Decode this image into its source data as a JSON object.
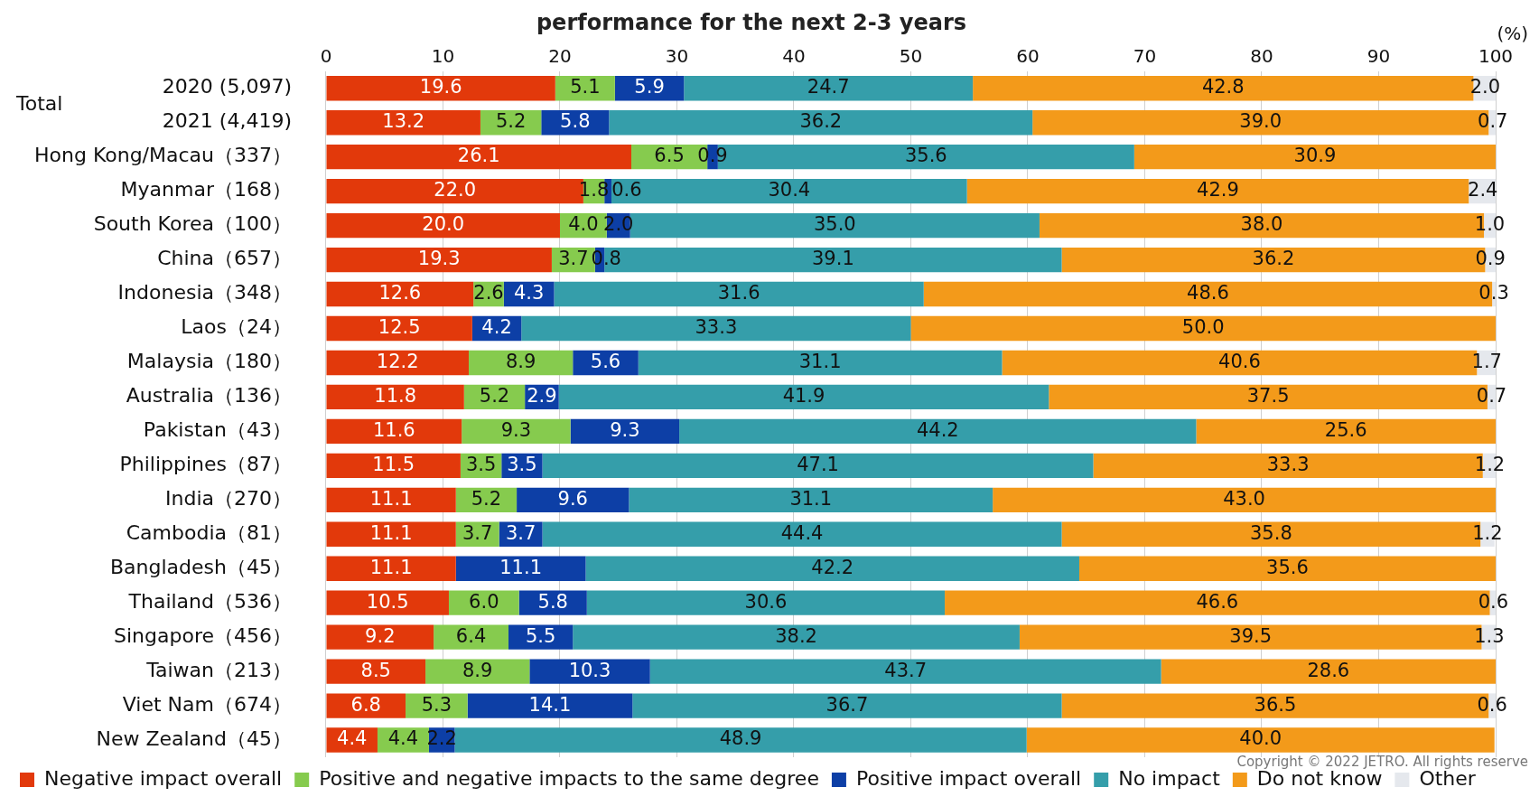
{
  "chart_data": {
    "type": "bar",
    "orientation": "horizontal",
    "stacked": true,
    "title": "performance for the next 2-3 years",
    "xlabel": "(%)",
    "categories": [
      "2020 (5,097)",
      "2021 (4,419)",
      "Hong Kong/Macau（337）",
      "Myanmar（168）",
      "South Korea（100）",
      "China（657）",
      "Indonesia（348）",
      "Laos（24）",
      "Malaysia（180）",
      "Australia（136）",
      "Pakistan（43）",
      "Philippines（87）",
      "India（270）",
      "Cambodia（81）",
      "Bangladesh（45）",
      "Thailand（536）",
      "Singapore（456）",
      "Taiwan（213）",
      "Viet Nam（674）",
      "New Zealand（45）"
    ],
    "series": [
      {
        "name": "Negative impact overall",
        "color": "#e2390b",
        "values": [
          19.6,
          13.2,
          26.1,
          22.0,
          20.0,
          19.3,
          12.6,
          12.5,
          12.2,
          11.8,
          11.6,
          11.5,
          11.1,
          11.1,
          11.1,
          10.5,
          9.2,
          8.5,
          6.8,
          4.4
        ],
        "value_labels": [
          "19.6",
          "13.2",
          "26.1",
          "22.0",
          "20.0",
          "19.3",
          "12.6",
          "12.5",
          "12.2",
          "11.8",
          "11.6",
          "11.5",
          "11.1",
          "11.1",
          "11.1",
          "10.5",
          "9.2",
          "8.5",
          "6.8",
          "4.4"
        ]
      },
      {
        "name": "Positive and negative impacts to the same degree",
        "color": "#86cb4e",
        "values": [
          5.1,
          5.2,
          6.5,
          1.8,
          4.0,
          3.7,
          2.6,
          0,
          8.9,
          5.2,
          9.3,
          3.5,
          5.2,
          3.7,
          0,
          6.0,
          6.4,
          8.9,
          5.3,
          4.4
        ],
        "value_labels": [
          "5.1",
          "5.2",
          "6.5",
          "1.8",
          "4.0",
          "3.7",
          "2.6",
          null,
          "8.9",
          "5.2",
          "9.3",
          "3.5",
          "5.2",
          "3.7",
          null,
          "6.0",
          "6.4",
          "8.9",
          "5.3",
          "4.4"
        ]
      },
      {
        "name": "Positive impact overall",
        "color": "#0d3fa6",
        "values": [
          5.9,
          5.8,
          0.9,
          0.6,
          2.0,
          0.8,
          4.3,
          4.2,
          5.6,
          2.9,
          9.3,
          3.5,
          9.6,
          3.7,
          11.1,
          5.8,
          5.5,
          10.3,
          14.1,
          2.2
        ],
        "value_labels": [
          "5.9",
          "5.8",
          "0.9",
          "0.6",
          "2.0",
          "0.8",
          "4.3",
          "4.2",
          "5.6",
          "2.9",
          "9.3",
          "3.5",
          "9.6",
          "3.7",
          "11.1",
          "5.8",
          "5.5",
          "10.3",
          "14.1",
          "2.2"
        ]
      },
      {
        "name": "No impact",
        "color": "#359eaa",
        "values": [
          24.7,
          36.2,
          35.6,
          30.4,
          35.0,
          39.1,
          31.6,
          33.3,
          31.1,
          41.9,
          44.2,
          47.1,
          31.1,
          44.4,
          42.2,
          30.6,
          38.2,
          43.7,
          36.7,
          48.9
        ],
        "value_labels": [
          "24.7",
          "36.2",
          "35.6",
          "30.4",
          "35.0",
          "39.1",
          "31.6",
          "33.3",
          "31.1",
          "41.9",
          "44.2",
          "47.1",
          "31.1",
          "44.4",
          "42.2",
          "30.6",
          "38.2",
          "43.7",
          "36.7",
          "48.9"
        ]
      },
      {
        "name": "Do not know",
        "color": "#f39a1a",
        "values": [
          42.8,
          39.0,
          30.9,
          42.9,
          38.0,
          36.2,
          48.6,
          50.0,
          40.6,
          37.5,
          25.6,
          33.3,
          43.0,
          35.8,
          35.6,
          46.6,
          39.5,
          28.6,
          36.5,
          40.0
        ],
        "value_labels": [
          "42.8",
          "39.0",
          "30.9",
          "42.9",
          "38.0",
          "36.2",
          "48.6",
          "50.0",
          "40.6",
          "37.5",
          "25.6",
          "33.3",
          "43.0",
          "35.8",
          "35.6",
          "46.6",
          "39.5",
          "28.6",
          "36.5",
          "40.0"
        ]
      },
      {
        "name": "Other",
        "color": "#e5e8ed",
        "values": [
          2.0,
          0.7,
          0,
          2.4,
          1.0,
          0.9,
          0.3,
          0,
          1.7,
          0.7,
          0,
          1.2,
          0,
          1.2,
          0,
          0.6,
          1.3,
          0,
          0.6,
          0
        ],
        "value_labels": [
          "2.0",
          "0.7",
          null,
          "2.4",
          "1.0",
          "0.9",
          "0.3",
          null,
          "1.7",
          "0.7",
          null,
          "1.2",
          null,
          "1.2",
          null,
          "0.6",
          "1.3",
          null,
          "0.6",
          null
        ]
      }
    ],
    "xlim": [
      0,
      100
    ],
    "xticks": [
      0,
      10,
      20,
      30,
      40,
      50,
      60,
      70,
      80,
      90,
      100
    ],
    "grid": "x",
    "legend": "bottom",
    "annotations": [
      "Total",
      "Copyright © 2022 JETRO. All rights reserve"
    ]
  }
}
